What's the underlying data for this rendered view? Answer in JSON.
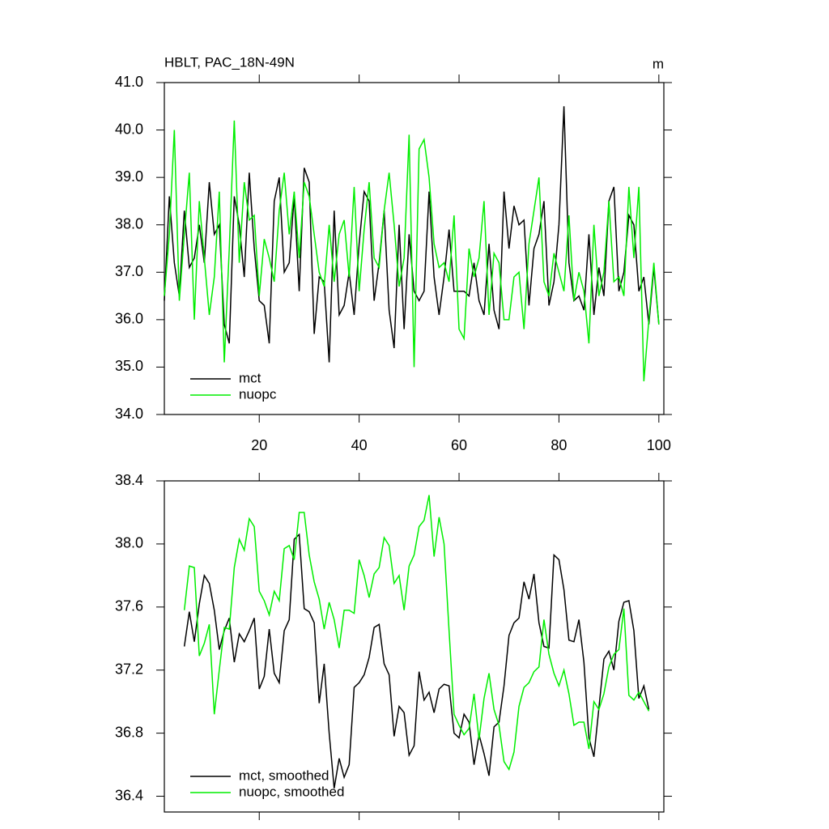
{
  "chart_data": [
    {
      "type": "line",
      "title": "HBLT, PAC_18N-49N",
      "units": "m",
      "x": [
        1,
        2,
        3,
        4,
        5,
        6,
        7,
        8,
        9,
        10,
        11,
        12,
        13,
        14,
        15,
        16,
        17,
        18,
        19,
        20,
        21,
        22,
        23,
        24,
        25,
        26,
        27,
        28,
        29,
        30,
        31,
        32,
        33,
        34,
        35,
        36,
        37,
        38,
        39,
        40,
        41,
        42,
        43,
        44,
        45,
        46,
        47,
        48,
        49,
        50,
        51,
        52,
        53,
        54,
        55,
        56,
        57,
        58,
        59,
        60,
        61,
        62,
        63,
        64,
        65,
        66,
        67,
        68,
        69,
        70,
        71,
        72,
        73,
        74,
        75,
        76,
        77,
        78,
        79,
        80,
        81,
        82,
        83,
        84,
        85,
        86,
        87,
        88,
        89,
        90,
        91,
        92,
        93,
        94,
        95,
        96,
        97,
        98,
        99,
        100
      ],
      "series": [
        {
          "name": "mct",
          "color": "#000000",
          "values": [
            36.4,
            38.6,
            37.2,
            36.5,
            38.3,
            37.1,
            37.3,
            38.0,
            37.2,
            38.9,
            37.8,
            38.0,
            35.9,
            35.5,
            38.6,
            38.0,
            36.9,
            39.1,
            37.5,
            36.4,
            36.3,
            35.5,
            38.5,
            39.0,
            37.0,
            37.2,
            38.6,
            36.6,
            39.2,
            38.9,
            35.7,
            36.9,
            36.8,
            35.1,
            38.3,
            36.1,
            36.3,
            37.0,
            36.1,
            37.6,
            38.7,
            38.5,
            36.4,
            37.2,
            38.3,
            36.2,
            35.4,
            38.0,
            35.8,
            37.8,
            36.6,
            36.4,
            36.6,
            38.7,
            36.9,
            36.1,
            36.9,
            37.9,
            36.6,
            36.6,
            36.6,
            36.5,
            37.2,
            36.4,
            36.1,
            37.6,
            36.2,
            35.8,
            38.7,
            37.5,
            38.4,
            38.0,
            38.1,
            36.3,
            37.5,
            37.8,
            38.5,
            36.3,
            36.8,
            38.0,
            40.5,
            37.2,
            36.4,
            36.5,
            36.2,
            37.8,
            36.1,
            37.1,
            36.5,
            38.5,
            38.8,
            36.6,
            37.0,
            38.2,
            38.0,
            36.6,
            36.9,
            35.9,
            37.1,
            35.9
          ]
        },
        {
          "name": "nuopc",
          "color": "#00ee00",
          "values": [
            36.5,
            37.8,
            40.0,
            36.4,
            37.8,
            39.1,
            36.0,
            38.5,
            37.3,
            36.1,
            36.9,
            38.7,
            35.1,
            37.5,
            40.2,
            37.2,
            38.9,
            38.1,
            38.2,
            36.5,
            37.7,
            37.3,
            36.8,
            38.3,
            39.1,
            37.8,
            38.7,
            37.3,
            38.9,
            38.6,
            37.8,
            37.0,
            36.7,
            38.0,
            36.8,
            37.8,
            38.1,
            36.9,
            38.8,
            36.6,
            37.9,
            38.9,
            37.3,
            37.1,
            38.3,
            39.1,
            38.0,
            36.7,
            37.3,
            39.9,
            35.0,
            39.6,
            39.8,
            39.0,
            37.6,
            37.1,
            37.2,
            36.8,
            38.2,
            35.8,
            35.6,
            37.5,
            36.9,
            37.3,
            38.5,
            36.1,
            37.4,
            37.2,
            36.0,
            36.0,
            36.9,
            37.0,
            35.8,
            37.6,
            38.3,
            39.0,
            36.8,
            36.5,
            37.4,
            37.0,
            36.6,
            38.2,
            36.4,
            37.0,
            36.6,
            35.5,
            38.0,
            36.5,
            37.0,
            38.5,
            36.8,
            36.9,
            36.5,
            38.8,
            37.3,
            38.8,
            34.7,
            36.0,
            37.2,
            35.9
          ]
        }
      ],
      "xlim": [
        1,
        101
      ],
      "xticks": [
        20,
        40,
        60,
        80,
        100
      ],
      "ylim": [
        34,
        41
      ],
      "yticks": [
        {
          "value": 34,
          "label": "34.0"
        },
        {
          "value": 35,
          "label": "35.0"
        },
        {
          "value": 36,
          "label": "36.0"
        },
        {
          "value": 37,
          "label": "37.0"
        },
        {
          "value": 38,
          "label": "38.0"
        },
        {
          "value": 39,
          "label": "39.0"
        },
        {
          "value": 40,
          "label": "40.0"
        },
        {
          "value": 41,
          "label": "41.0"
        }
      ],
      "legend": "lower left"
    },
    {
      "type": "line",
      "x": [
        5,
        6,
        7,
        8,
        9,
        10,
        11,
        12,
        13,
        14,
        15,
        16,
        17,
        18,
        19,
        20,
        21,
        22,
        23,
        24,
        25,
        26,
        27,
        28,
        29,
        30,
        31,
        32,
        33,
        34,
        35,
        36,
        37,
        38,
        39,
        40,
        41,
        42,
        43,
        44,
        45,
        46,
        47,
        48,
        49,
        50,
        51,
        52,
        53,
        54,
        55,
        56,
        57,
        58,
        59,
        60,
        61,
        62,
        63,
        64,
        65,
        66,
        67,
        68,
        69,
        70,
        71,
        72,
        73,
        74,
        75,
        76,
        77,
        78,
        79,
        80,
        81,
        82,
        83,
        84,
        85,
        86,
        87,
        88,
        89,
        90,
        91,
        92,
        93,
        94,
        95,
        96,
        97,
        98
      ],
      "series": [
        {
          "name": "mct, smoothed",
          "color": "#000000",
          "values": [
            37.35,
            37.57,
            37.38,
            37.62,
            37.8,
            37.75,
            37.58,
            37.33,
            37.45,
            37.53,
            37.25,
            37.43,
            37.38,
            37.45,
            37.53,
            37.08,
            37.16,
            37.46,
            37.18,
            37.12,
            37.45,
            37.52,
            38.03,
            38.06,
            37.59,
            37.57,
            37.5,
            36.99,
            37.24,
            36.8,
            36.45,
            36.64,
            36.52,
            36.6,
            37.09,
            37.12,
            37.17,
            37.28,
            37.47,
            37.49,
            37.24,
            37.17,
            36.78,
            36.97,
            36.93,
            36.66,
            36.72,
            37.19,
            37.01,
            37.06,
            36.93,
            37.08,
            37.11,
            37.1,
            36.8,
            36.77,
            36.92,
            36.87,
            36.6,
            36.79,
            36.67,
            36.53,
            36.84,
            36.87,
            37.1,
            37.42,
            37.5,
            37.53,
            37.76,
            37.65,
            37.81,
            37.5,
            37.35,
            37.34,
            37.93,
            37.9,
            37.71,
            37.39,
            37.38,
            37.52,
            37.25,
            36.77,
            36.65,
            36.96,
            37.27,
            37.32,
            37.2,
            37.51,
            37.63,
            37.64,
            37.45,
            37.02,
            37.1,
            36.95
          ]
        },
        {
          "name": "nuopc, smoothed",
          "color": "#00ee00",
          "values": [
            37.58,
            37.86,
            37.85,
            37.29,
            37.37,
            37.49,
            36.92,
            37.2,
            37.47,
            37.46,
            37.85,
            38.03,
            37.96,
            38.16,
            38.11,
            37.7,
            37.64,
            37.55,
            37.7,
            37.64,
            37.97,
            37.99,
            37.9,
            38.2,
            38.2,
            37.93,
            37.76,
            37.65,
            37.46,
            37.63,
            37.52,
            37.34,
            37.58,
            37.58,
            37.56,
            37.9,
            37.8,
            37.66,
            37.81,
            37.85,
            38.04,
            37.99,
            37.75,
            37.8,
            37.58,
            37.86,
            37.93,
            38.11,
            38.15,
            38.31,
            37.92,
            38.17,
            38.0,
            37.45,
            36.92,
            36.85,
            36.79,
            36.83,
            37.05,
            36.76,
            37.02,
            37.18,
            36.95,
            36.85,
            36.62,
            36.57,
            36.68,
            36.97,
            37.09,
            37.12,
            37.19,
            37.22,
            37.52,
            37.3,
            37.18,
            37.1,
            37.2,
            37.05,
            36.85,
            36.87,
            36.87,
            36.7,
            37.0,
            36.95,
            37.05,
            37.22,
            37.3,
            37.33,
            37.59,
            37.04,
            37.01,
            37.06,
            37.0,
            36.94
          ]
        }
      ],
      "xlim": [
        1,
        101
      ],
      "xticks": [
        20,
        40,
        60,
        80,
        100
      ],
      "ylim": [
        36.3,
        38.4
      ],
      "yticks": [
        {
          "value": 36.4,
          "label": "36.4"
        },
        {
          "value": 36.8,
          "label": "36.8"
        },
        {
          "value": 37.2,
          "label": "37.2"
        },
        {
          "value": 37.6,
          "label": "37.6"
        },
        {
          "value": 38.0,
          "label": "38.0"
        },
        {
          "value": 38.4,
          "label": "38.4"
        }
      ],
      "legend": "lower left"
    }
  ]
}
